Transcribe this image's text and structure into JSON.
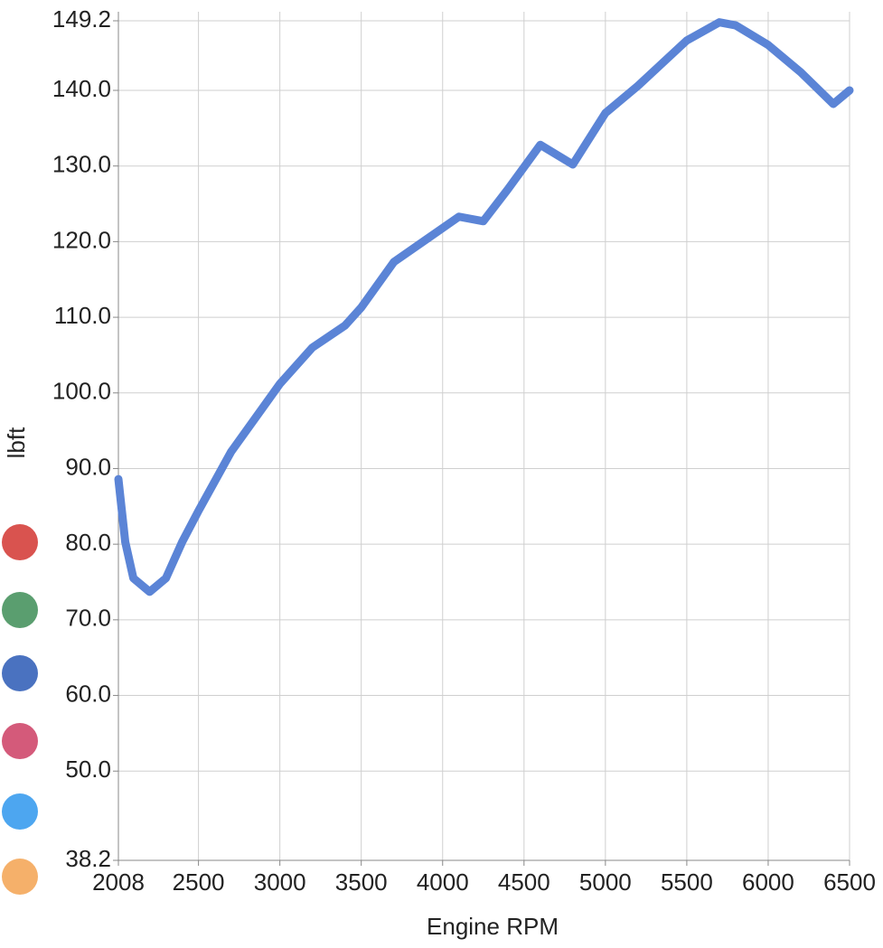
{
  "chart_data": {
    "type": "line",
    "x_label": "Engine RPM",
    "y_label": "lbft",
    "series": [
      {
        "name": null,
        "color": "#5b84d6",
        "x": [
          2008,
          2050,
          2100,
          2200,
          2300,
          2400,
          2500,
          2700,
          2900,
          3000,
          3200,
          3400,
          3500,
          3700,
          3900,
          4100,
          4250,
          4400,
          4600,
          4800,
          5000,
          5200,
          5500,
          5700,
          5800,
          6000,
          6200,
          6400,
          6500
        ],
        "values": [
          88.6,
          80.3,
          75.5,
          73.7,
          75.5,
          80.3,
          84.4,
          92.2,
          98.2,
          101.2,
          106,
          108.9,
          111.3,
          117.3,
          120.3,
          123.3,
          122.7,
          126.9,
          132.8,
          130.2,
          137,
          140.6,
          146.6,
          149,
          148.6,
          146,
          142.4,
          138.2,
          140
        ]
      }
    ],
    "xlim": [
      2008,
      6500
    ],
    "ylim": [
      38.2,
      149.2
    ],
    "xticks": [
      2008,
      2500,
      3000,
      3500,
      4000,
      4500,
      5000,
      5500,
      6000,
      6500
    ],
    "yticks": [
      38.2,
      {
        "value": 50,
        "label": "50.0"
      },
      {
        "value": 60,
        "label": "60.0"
      },
      {
        "value": 70,
        "label": "70.0"
      },
      {
        "value": 80,
        "label": "80.0"
      },
      {
        "value": 90,
        "label": "90.0"
      },
      {
        "value": 100,
        "label": "100.0"
      },
      {
        "value": 110,
        "label": "110.0"
      },
      {
        "value": 120,
        "label": "120.0"
      },
      {
        "value": 130,
        "label": "130.0"
      },
      {
        "value": 140,
        "label": "140.0"
      },
      149.2
    ],
    "grid": true
  }
}
